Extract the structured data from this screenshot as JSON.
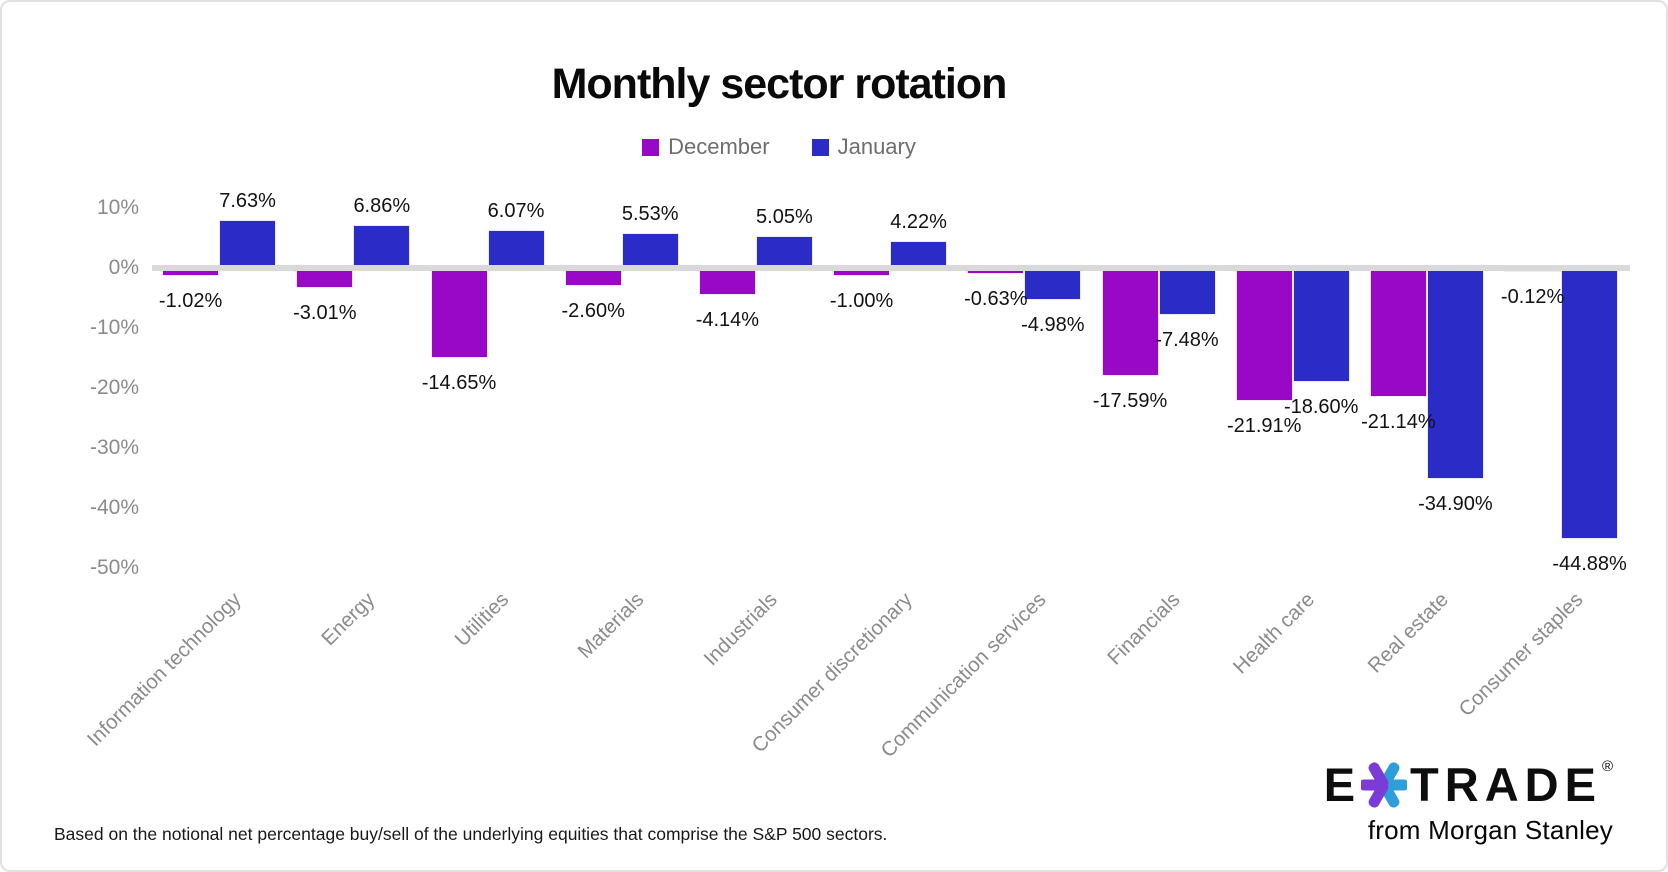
{
  "chart_data": {
    "type": "bar",
    "title": "Monthly sector rotation",
    "categories": [
      "Information technology",
      "Energy",
      "Utilities",
      "Materials",
      "Industrials",
      "Consumer discretionary",
      "Communication services",
      "Financials",
      "Health care",
      "Real estate",
      "Consumer staples"
    ],
    "series": [
      {
        "name": "December",
        "color": "#9908C6",
        "values": [
          -1.02,
          -3.01,
          -14.65,
          -2.6,
          -4.14,
          -1.0,
          -0.63,
          -17.59,
          -21.91,
          -21.14,
          -0.12
        ],
        "labels": [
          "-1.02%",
          "-3.01%",
          "-14.65%",
          "-2.60%",
          "-4.14%",
          "-1.00%",
          "-0.63%",
          "-17.59%",
          "-21.91%",
          "-21.14%",
          "-0.12%"
        ]
      },
      {
        "name": "January",
        "color": "#2B2BC7",
        "values": [
          7.63,
          6.86,
          6.07,
          5.53,
          5.05,
          4.22,
          -4.98,
          -7.48,
          -18.6,
          -34.9,
          -44.88
        ],
        "labels": [
          "7.63%",
          "6.86%",
          "6.07%",
          "5.53%",
          "5.05%",
          "4.22%",
          "-4.98%",
          "-7.48%",
          "-18.60%",
          "-34.90%",
          "-44.88%"
        ]
      }
    ],
    "y_axis": {
      "ticks": [
        {
          "label": "10%",
          "value": 10
        },
        {
          "label": "0%",
          "value": 0
        },
        {
          "label": "-10%",
          "value": -10
        },
        {
          "label": "-20%",
          "value": -20
        },
        {
          "label": "-30%",
          "value": -30
        },
        {
          "label": "-40%",
          "value": -40
        },
        {
          "label": "-50%",
          "value": -50
        }
      ],
      "ylim": [
        -55,
        12
      ]
    },
    "grid": "off",
    "legend_position": "top",
    "zero_line_color": "#D9D9D9",
    "label_color": "#121212",
    "axis_text_color": "#8b8b8b"
  },
  "footnote": "Based on the notional net percentage buy/sell of the underlying equities that comprise the S&P 500 sectors.",
  "logo": {
    "brand_e": "E",
    "brand_trade": "TRADE",
    "registered": "®",
    "tagline": "from Morgan Stanley",
    "star_purple": "#7A3BD7",
    "star_blue": "#2E9ED9"
  }
}
